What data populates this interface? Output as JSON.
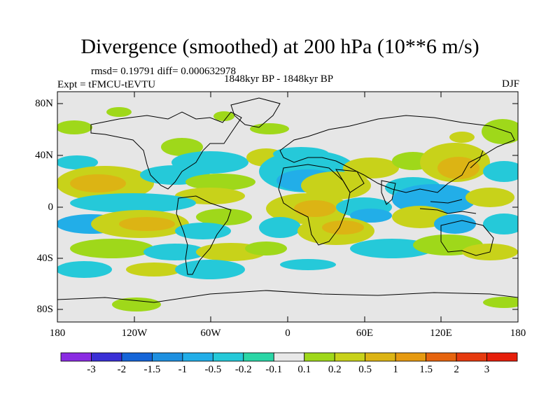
{
  "header": {
    "title": "Divergence (smoothed) at 200 hPa (10**6 m/s)",
    "stats": "rmsd= 0.19791 diff= 0.000632978",
    "experiment": "Expt = tFMCU-tEVTU",
    "period": "1848kyr BP - 1848kyr BP",
    "season": "DJF"
  },
  "map": {
    "lat_ticks": [
      "80N",
      "40N",
      "0",
      "40S",
      "80S"
    ],
    "lon_ticks": [
      "180",
      "120W",
      "60W",
      "0",
      "60E",
      "120E",
      "180"
    ]
  },
  "colorbar": {
    "labels": [
      "-3",
      "-2",
      "-1.5",
      "-1",
      "-0.5",
      "-0.2",
      "-0.1",
      "0.1",
      "0.2",
      "0.5",
      "1",
      "1.5",
      "2",
      "3"
    ],
    "colors": [
      "#8a2be2",
      "#3a2fd6",
      "#1565d8",
      "#1e90e0",
      "#22aee8",
      "#25c9d9",
      "#2ad6a6",
      "#e8e8e8",
      "#9fd81a",
      "#c8d21a",
      "#dcb414",
      "#e69a10",
      "#e6640e",
      "#e63a0e",
      "#e61e0a"
    ]
  },
  "colors": {
    "land_line": "#000000",
    "background": "#e6e6e6"
  }
}
